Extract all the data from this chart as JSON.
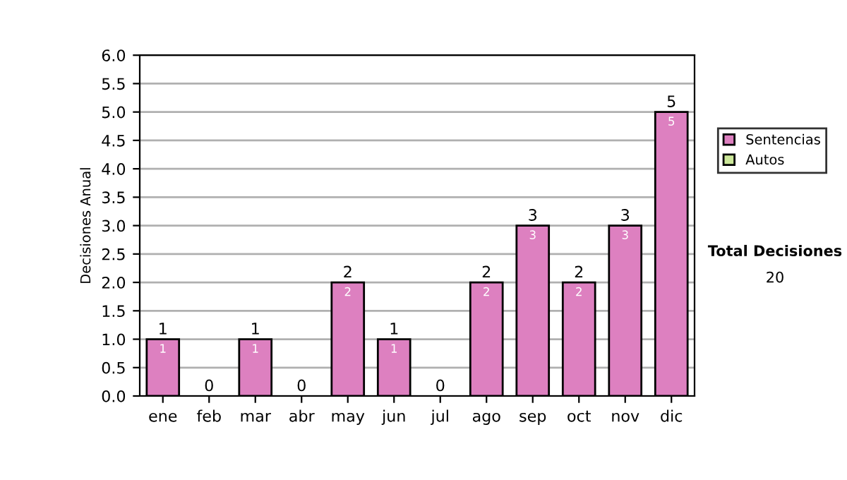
{
  "chart_data": {
    "type": "bar",
    "ylabel": "Decisiones Anual",
    "categories": [
      "ene",
      "feb",
      "mar",
      "abr",
      "may",
      "jun",
      "jul",
      "ago",
      "sep",
      "oct",
      "nov",
      "dic"
    ],
    "series": [
      {
        "name": "Sentencias",
        "color": "#dd80c0",
        "values": [
          1,
          0,
          1,
          0,
          2,
          1,
          0,
          2,
          3,
          2,
          3,
          5
        ],
        "value_labels": [
          "1",
          null,
          "1",
          null,
          "2",
          "1",
          null,
          "2",
          "3",
          "2",
          "3",
          "5"
        ]
      },
      {
        "name": "Autos",
        "color": "#cce89a",
        "values": [
          0,
          0,
          0,
          0,
          0,
          0,
          0,
          0,
          0,
          0,
          0,
          0
        ]
      }
    ],
    "stacked": true,
    "totals": [
      "1",
      "0",
      "1",
      "0",
      "2",
      "1",
      "0",
      "2",
      "3",
      "2",
      "3",
      "5"
    ],
    "ylim": [
      0,
      6
    ],
    "yticks": [
      {
        "value": 0,
        "label": "0.0"
      },
      {
        "value": 0.5,
        "label": "0.5"
      },
      {
        "value": 1,
        "label": "1.0"
      },
      {
        "value": 1.5,
        "label": "1.5"
      },
      {
        "value": 2,
        "label": "2.0"
      },
      {
        "value": 2.5,
        "label": "2.5"
      },
      {
        "value": 3,
        "label": "3.0"
      },
      {
        "value": 3.5,
        "label": "3.5"
      },
      {
        "value": 4,
        "label": "4.0"
      },
      {
        "value": 4.5,
        "label": "4.5"
      },
      {
        "value": 5,
        "label": "5.0"
      },
      {
        "value": 5.5,
        "label": "5.5"
      },
      {
        "value": 6,
        "label": "6.0"
      }
    ],
    "grid": "y",
    "legend": "right",
    "annotations": [
      "Total Decisiones",
      "20"
    ]
  }
}
